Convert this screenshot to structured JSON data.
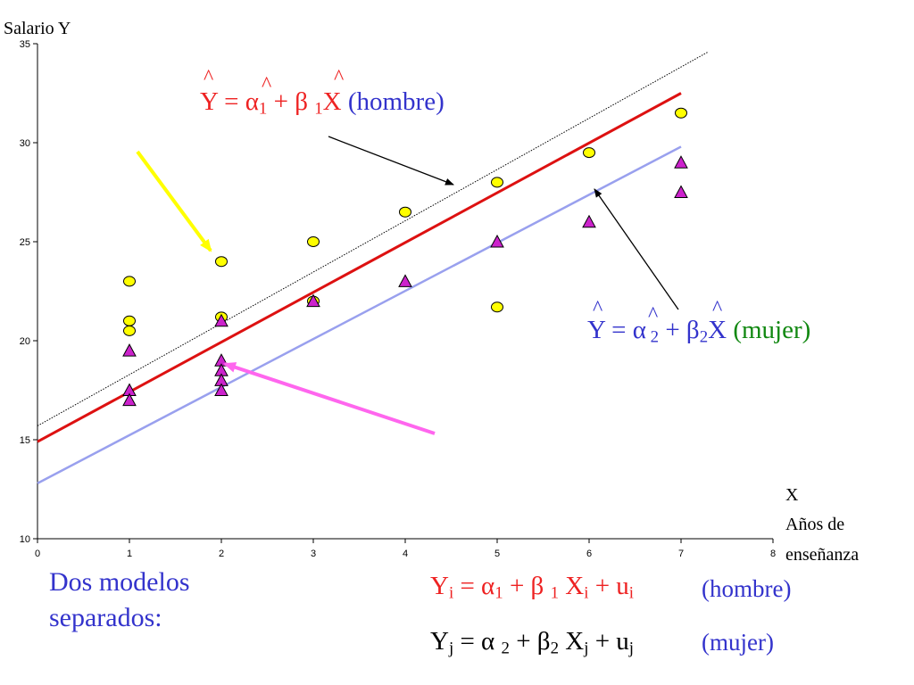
{
  "chart_data": {
    "type": "scatter",
    "xlim": [
      0,
      8
    ],
    "ylim": [
      10,
      35
    ],
    "x_ticks": [
      "0",
      "1",
      "2",
      "3",
      "4",
      "5",
      "6",
      "7",
      "8"
    ],
    "y_ticks": [
      "10",
      "15",
      "20",
      "25",
      "30",
      "35"
    ],
    "ylabel": "Salario Y",
    "xlabel_lines": [
      "X",
      "Años de",
      "enseñanza"
    ],
    "grid": false,
    "series": [
      {
        "marker": "circle",
        "color": "#ffff00",
        "x": [
          1,
          1,
          1,
          2,
          2,
          3,
          3,
          4,
          5,
          5,
          6,
          7
        ],
        "y": [
          23,
          21,
          20.5,
          24,
          21.2,
          25,
          22,
          26.5,
          28,
          21.7,
          29.5,
          31.5
        ]
      },
      {
        "marker": "triangle",
        "color": "#cc22cc",
        "x": [
          1,
          1,
          1,
          2,
          2,
          2,
          2,
          2,
          3,
          4,
          5,
          6,
          7,
          7
        ],
        "y": [
          19.5,
          17.5,
          17,
          21,
          19,
          18.5,
          18,
          17.5,
          22,
          23,
          25,
          26,
          29,
          27.5
        ]
      }
    ],
    "lines": [
      {
        "name_ref": "hombre",
        "color": "#dd1111",
        "style": "solid",
        "width": 3,
        "x": [
          0,
          7
        ],
        "y": [
          14.9,
          32.5
        ]
      },
      {
        "name_ref": "mujer",
        "color": "#99a0ee",
        "style": "solid",
        "width": 2.5,
        "x": [
          0,
          7
        ],
        "y": [
          12.8,
          29.8
        ]
      },
      {
        "name_ref": "thin",
        "color": "#000000",
        "style": "dotted",
        "width": 1,
        "x": [
          0,
          7.3
        ],
        "y": [
          15.7,
          34.6
        ]
      }
    ],
    "colors": {
      "red": "#ee2222",
      "blue": "#3333cc",
      "green": "#118811",
      "yellow_arrow": "#ffff00",
      "pink_arrow": "#ff66ee",
      "black": "#000000"
    }
  },
  "eq_hombre": {
    "hats": [
      "^",
      "^",
      "^"
    ],
    "lhs": "Y = α",
    "sub1": "1",
    "mid": " + β ",
    "sub2": "1",
    "rhs": "X",
    "tag": " (hombre)"
  },
  "eq_mujer": {
    "hats": [
      "^",
      "^",
      "^"
    ],
    "lhs": "Y = α",
    "sub1": " 2",
    "mid": " + β",
    "sub2": "2",
    "rhs": "X",
    "tag": " (mujer)"
  },
  "model_title_lines": [
    "Dos modelos",
    "separados:"
  ],
  "model_hombre": {
    "Y": "Y",
    "Ysub": "i",
    "eq": " = α",
    "asub": "1",
    "plus": " + β ",
    "bsub": "1",
    "X": " X",
    "Xsub": "i",
    "u": " + u",
    "usub": "i",
    "tag": "(hombre)"
  },
  "model_mujer": {
    "Y": "Y",
    "Ysub": "j",
    "eq": " = α ",
    "asub": "2",
    "plus": " + β",
    "bsub": "2",
    "X": " X",
    "Xsub": "j",
    "u": " + u",
    "usub": "j",
    "tag": "(mujer)"
  }
}
